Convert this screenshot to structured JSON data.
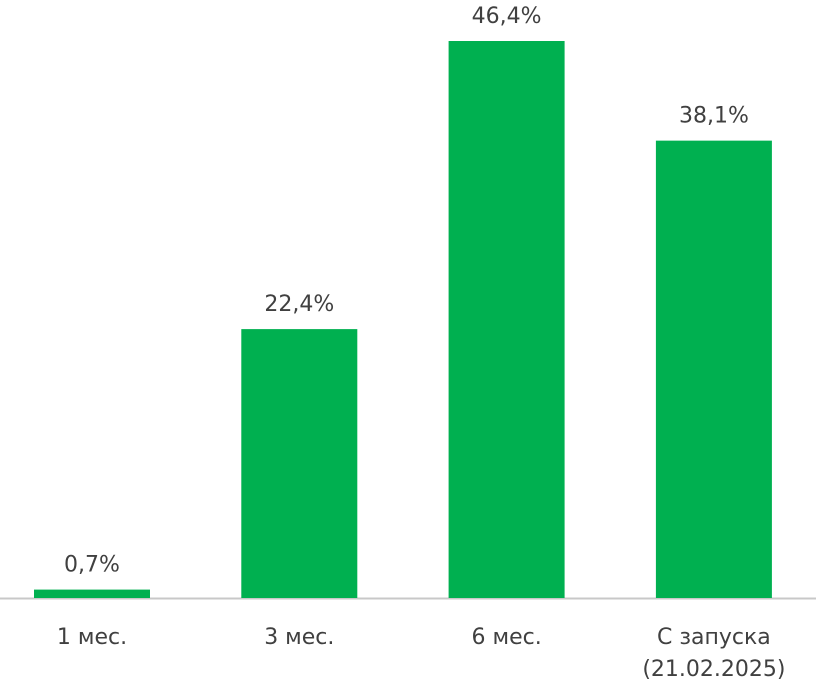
{
  "chart_data": {
    "type": "bar",
    "categories": [
      "1 мес.",
      "3 мес.",
      "6 мес.",
      "С запуска (21.02.2025)"
    ],
    "values": [
      0.7,
      22.4,
      46.4,
      38.1
    ],
    "value_labels": [
      "0,7%",
      "22,4%",
      "46,4%",
      "38,1%"
    ],
    "color": "#00b050"
  }
}
